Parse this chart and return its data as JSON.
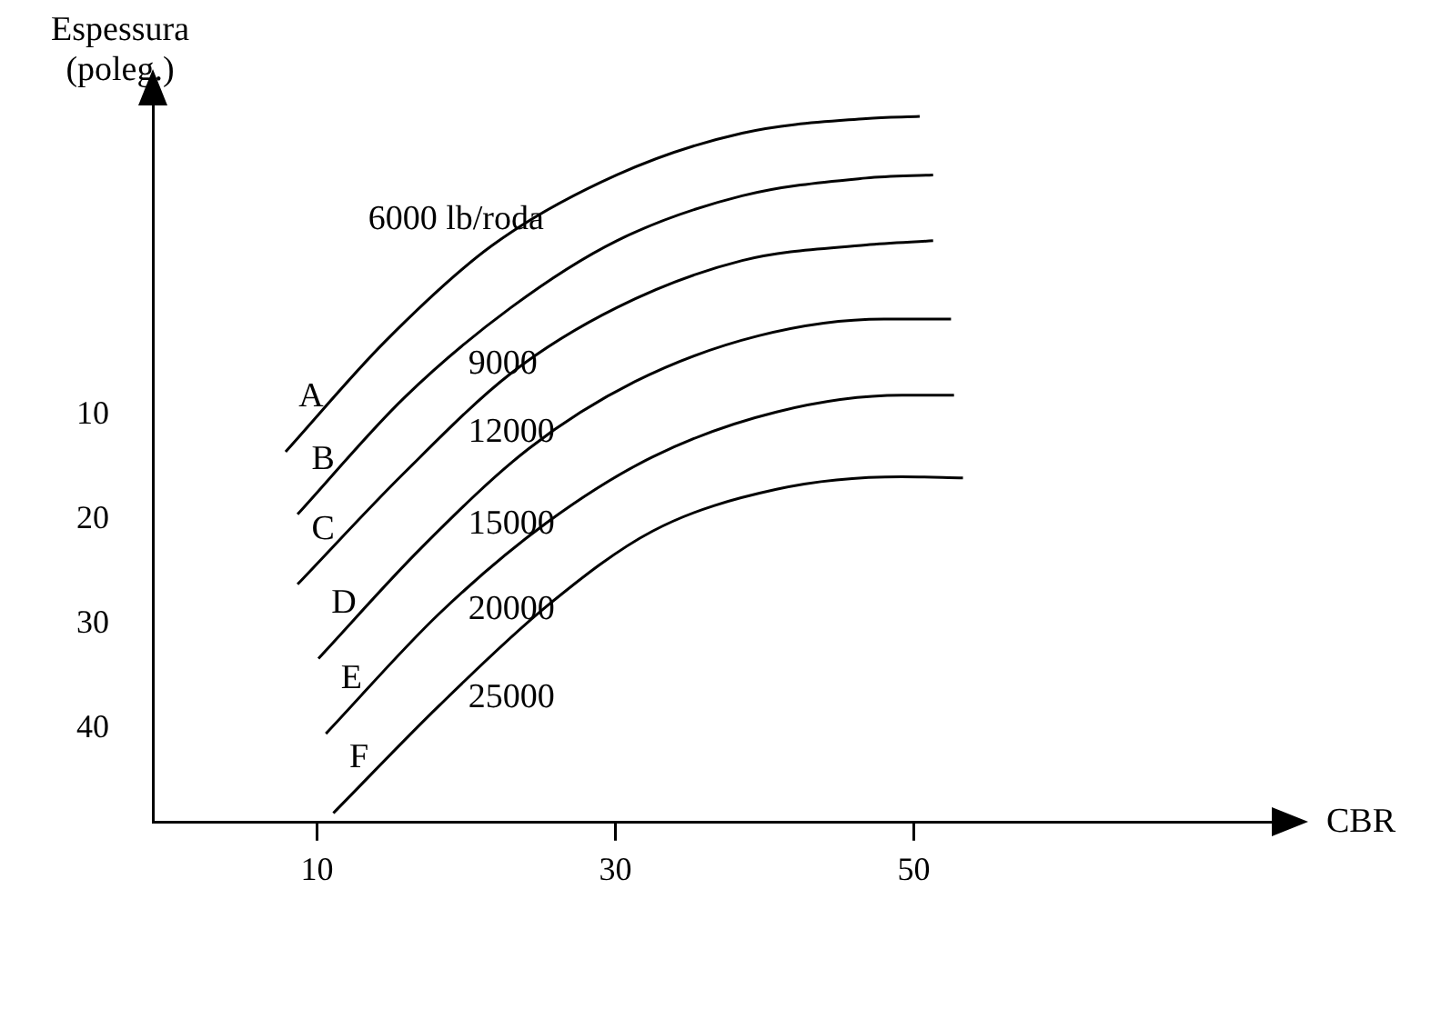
{
  "chart_data": {
    "type": "line",
    "xlabel": "CBR",
    "ylabel": "Espessura\n(poleg.)",
    "xlim": [
      -1,
      74
    ],
    "xticks": [
      10,
      30,
      50
    ],
    "ylim": [
      49,
      -20
    ],
    "yticks": [
      10,
      20,
      30,
      40
    ],
    "grid": false,
    "legend": false,
    "marker": "none",
    "line_style": "solid",
    "series": [
      {
        "name": "A",
        "color": "#000000",
        "x": [
          7.9,
          14.6,
          21.7,
          30.1,
          38.5,
          46.8,
          50.4
        ],
        "values": [
          13.5,
          2.9,
          -6.2,
          -13.0,
          -17.0,
          -18.4,
          -18.6
        ]
      },
      {
        "name": "B",
        "color": "#000000",
        "x": [
          8.7,
          15.8,
          23.0,
          30.1,
          38.5,
          46.8,
          51.3
        ],
        "values": [
          19.5,
          8.4,
          -0.3,
          -6.7,
          -11.0,
          -12.7,
          -13.0
        ]
      },
      {
        "name": "C",
        "color": "#000000",
        "x": [
          8.7,
          15.8,
          23.0,
          30.1,
          38.5,
          46.8,
          51.3
        ],
        "values": [
          26.2,
          15.6,
          6.0,
          -0.3,
          -4.8,
          -6.3,
          -6.7
        ]
      },
      {
        "name": "D",
        "color": "#000000",
        "x": [
          10.1,
          17.0,
          24.2,
          31.3,
          39.6,
          48.0,
          52.5
        ],
        "values": [
          33.3,
          22.7,
          13.2,
          6.8,
          2.4,
          0.8,
          0.8
        ]
      },
      {
        "name": "E",
        "color": "#000000",
        "x": [
          10.6,
          18.2,
          25.4,
          32.5,
          40.8,
          49.2,
          52.7
        ],
        "values": [
          40.5,
          29.0,
          20.3,
          14.0,
          9.7,
          8.1,
          8.1
        ]
      },
      {
        "name": "F",
        "color": "#000000",
        "x": [
          11.1,
          18.2,
          25.4,
          32.5,
          40.8,
          49.2,
          53.3
        ],
        "values": [
          48.1,
          37.8,
          28.3,
          21.1,
          17.1,
          15.9,
          16.0
        ]
      }
    ],
    "annotations": [
      "6000 lb/roda",
      "9000",
      "12000",
      "15000",
      "20000",
      "25000"
    ]
  }
}
